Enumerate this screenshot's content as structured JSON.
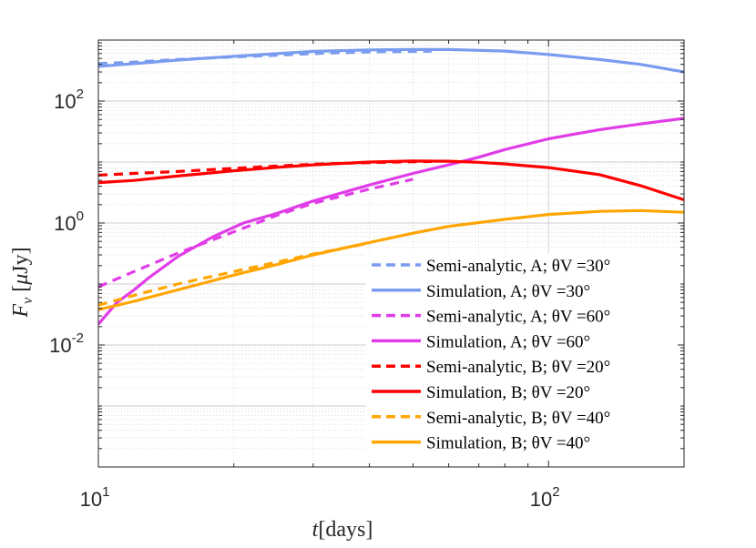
{
  "chart_data": {
    "type": "line",
    "xlabel": "t[days]",
    "ylabel": "F_ν [μJy]",
    "xscale": "log",
    "yscale": "log",
    "xlim": [
      10,
      200
    ],
    "ylim": [
      0.0001,
      1000
    ],
    "grid": true,
    "legend_position": "bottom-right",
    "x_ticks": [
      {
        "base": "10",
        "exp": "1",
        "value": 10
      },
      {
        "base": "10",
        "exp": "2",
        "value": 100
      }
    ],
    "y_ticks": [
      {
        "base": "10",
        "exp": "-2",
        "value": 0.01
      },
      {
        "base": "10",
        "exp": "0",
        "value": 1
      },
      {
        "base": "10",
        "exp": "2",
        "value": 100
      }
    ],
    "series": [
      {
        "name": "Semi-analytic, A; θV =30°",
        "color": "#7a9cf0",
        "dash": "dashed",
        "x": [
          10,
          12,
          15,
          20,
          25,
          30,
          40,
          50,
          55
        ],
        "y": [
          410,
          435,
          480,
          530,
          565,
          600,
          640,
          650,
          655
        ]
      },
      {
        "name": "Simulation, A; θV =30°",
        "color": "#7a9cf0",
        "dash": "solid",
        "x": [
          10,
          12,
          15,
          20,
          25,
          30,
          40,
          50,
          60,
          80,
          100,
          130,
          160,
          200
        ],
        "y": [
          370,
          410,
          470,
          540,
          600,
          650,
          690,
          700,
          700,
          660,
          580,
          480,
          400,
          300
        ]
      },
      {
        "name": "Semi-analytic, A; θV =60°",
        "color": "#e03ce8",
        "dash": "dashed",
        "x": [
          10,
          12,
          15,
          20,
          25,
          30,
          40,
          50
        ],
        "y": [
          0.09,
          0.16,
          0.32,
          0.72,
          1.35,
          2.1,
          3.6,
          5.2
        ]
      },
      {
        "name": "Simulation, A; θV =60°",
        "color": "#e03ce8",
        "dash": "solid",
        "x": [
          10,
          11,
          12,
          13,
          15,
          18,
          21,
          25,
          30,
          40,
          50,
          60,
          70,
          80,
          100,
          130,
          160,
          200
        ],
        "y": [
          0.022,
          0.05,
          0.08,
          0.13,
          0.28,
          0.6,
          1.0,
          1.45,
          2.3,
          4.2,
          6.5,
          9,
          12,
          16,
          24,
          34,
          42,
          52
        ]
      },
      {
        "name": "Semi-analytic, B; θV =20°",
        "color": "#ff0000",
        "dash": "dashed",
        "x": [
          10,
          12,
          15,
          20,
          25,
          30,
          40,
          50,
          55
        ],
        "y": [
          6.1,
          6.5,
          7.0,
          7.9,
          8.6,
          9.2,
          9.8,
          10.1,
          10.2
        ]
      },
      {
        "name": "Simulation, B; θV =20°",
        "color": "#ff0000",
        "dash": "solid",
        "x": [
          10,
          12,
          15,
          20,
          25,
          30,
          40,
          50,
          60,
          70,
          80,
          100,
          130,
          160,
          200
        ],
        "y": [
          4.6,
          5.0,
          5.9,
          7.2,
          8.2,
          9.0,
          10.0,
          10.4,
          10.3,
          9.9,
          9.3,
          8.1,
          6.2,
          4.1,
          2.4
        ]
      },
      {
        "name": "Semi-analytic, B; θV =40°",
        "color": "#ffa500",
        "dash": "dashed",
        "x": [
          10,
          12,
          15,
          20,
          25,
          30,
          40
        ],
        "y": [
          0.045,
          0.065,
          0.1,
          0.16,
          0.23,
          0.31,
          0.47
        ]
      },
      {
        "name": "Simulation, B; θV =40°",
        "color": "#ffa500",
        "dash": "solid",
        "x": [
          10,
          12,
          15,
          20,
          25,
          30,
          40,
          50,
          60,
          80,
          100,
          130,
          160,
          200
        ],
        "y": [
          0.038,
          0.052,
          0.08,
          0.14,
          0.21,
          0.3,
          0.48,
          0.68,
          0.88,
          1.15,
          1.38,
          1.55,
          1.6,
          1.5
        ]
      }
    ]
  }
}
